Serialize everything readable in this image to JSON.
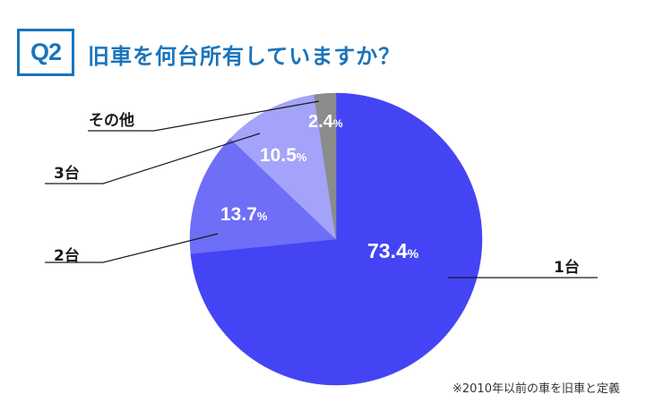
{
  "header": {
    "badge": "Q2",
    "question": "旧車を何台所有していますか？"
  },
  "footnote": "※2010年以前の車を旧車と定義",
  "colors": {
    "accent": "#1a74bb",
    "leader": "#1a1a1a"
  },
  "chart_data": {
    "type": "pie",
    "title": "旧車を何台所有していますか？",
    "unit": "%",
    "start": "12 o'clock, clockwise",
    "slices": [
      {
        "label": "1台",
        "value": 73.4,
        "display": "73.4",
        "color": "#4444f5"
      },
      {
        "label": "2台",
        "value": 13.7,
        "display": "13.7",
        "color": "#6e6ef6"
      },
      {
        "label": "3台",
        "value": 10.5,
        "display": "10.5",
        "color": "#a3a3fa"
      },
      {
        "label": "その他",
        "value": 2.4,
        "display": "2.4",
        "color": "#8c8c8c"
      }
    ]
  }
}
